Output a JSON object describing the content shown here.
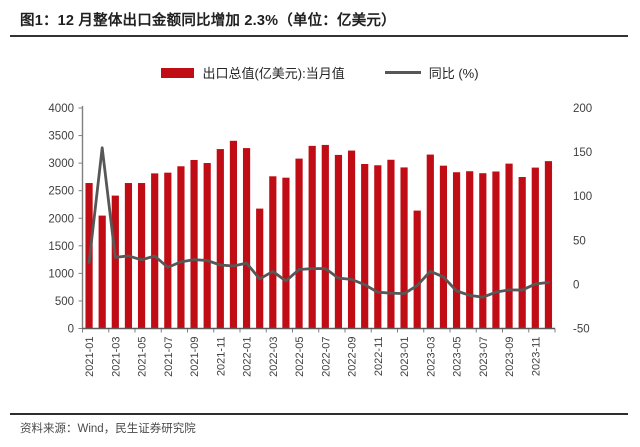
{
  "figure": {
    "title": "图1：12 月整体出口金额同比增加 2.3%（单位：亿美元）",
    "source": "资料来源：Wind，民生证券研究院"
  },
  "legend": {
    "bar_label": "出口总值(亿美元):当月值",
    "line_label": "同比 (%)"
  },
  "colors": {
    "bar": "#C00D15",
    "line": "#575757",
    "axis": "#7f7f7f",
    "tick_text": "#404040"
  },
  "chart_data": {
    "type": "combo-bar-line",
    "title": "图1：12 月整体出口金额同比增加 2.3%（单位：亿美元）",
    "x": [
      "2021-01",
      "2021-02",
      "2021-03",
      "2021-04",
      "2021-05",
      "2021-06",
      "2021-07",
      "2021-08",
      "2021-09",
      "2021-10",
      "2021-11",
      "2021-12",
      "2022-01",
      "2022-02",
      "2022-03",
      "2022-04",
      "2022-05",
      "2022-06",
      "2022-07",
      "2022-08",
      "2022-09",
      "2022-10",
      "2022-11",
      "2022-12",
      "2023-01",
      "2023-02",
      "2023-03",
      "2023-04",
      "2023-05",
      "2023-06",
      "2023-07",
      "2023-08",
      "2023-09",
      "2023-10",
      "2023-11",
      "2023-12"
    ],
    "x_label_interval": 2,
    "series": [
      {
        "name": "出口总值(亿美元):当月值",
        "type": "bar",
        "axis": "left",
        "values": [
          2639,
          2048,
          2411,
          2639,
          2639,
          2814,
          2827,
          2943,
          3057,
          3002,
          3255,
          3405,
          3273,
          2175,
          2761,
          2736,
          3082,
          3313,
          3330,
          3149,
          3228,
          2984,
          2961,
          3061,
          2922,
          2139,
          3155,
          2954,
          2835,
          2853,
          2817,
          2848,
          2991,
          2748,
          2919,
          3036
        ]
      },
      {
        "name": "同比 (%)",
        "type": "line",
        "axis": "right",
        "values": [
          24.8,
          154.9,
          30.6,
          32.3,
          27.9,
          32.2,
          19.3,
          25.6,
          28.1,
          27.1,
          22.0,
          20.9,
          24.1,
          6.2,
          14.7,
          3.9,
          16.9,
          17.9,
          18.0,
          7.1,
          5.7,
          -0.3,
          -8.9,
          -9.9,
          -10.5,
          -1.3,
          14.8,
          8.5,
          -7.5,
          -12.4,
          -14.5,
          -8.8,
          -6.2,
          -6.4,
          0.5,
          2.3
        ]
      }
    ],
    "left_axis": {
      "min": 0,
      "max": 4000,
      "step": 500,
      "tick_labels": [
        "0",
        "500",
        "1000",
        "1500",
        "2000",
        "2500",
        "3000",
        "3500",
        "4000"
      ]
    },
    "right_axis": {
      "min": -50,
      "max": 200,
      "step": 50,
      "tick_labels": [
        "-50",
        "0",
        "50",
        "100",
        "150",
        "200"
      ]
    },
    "grid": false,
    "legend_position": "top"
  }
}
